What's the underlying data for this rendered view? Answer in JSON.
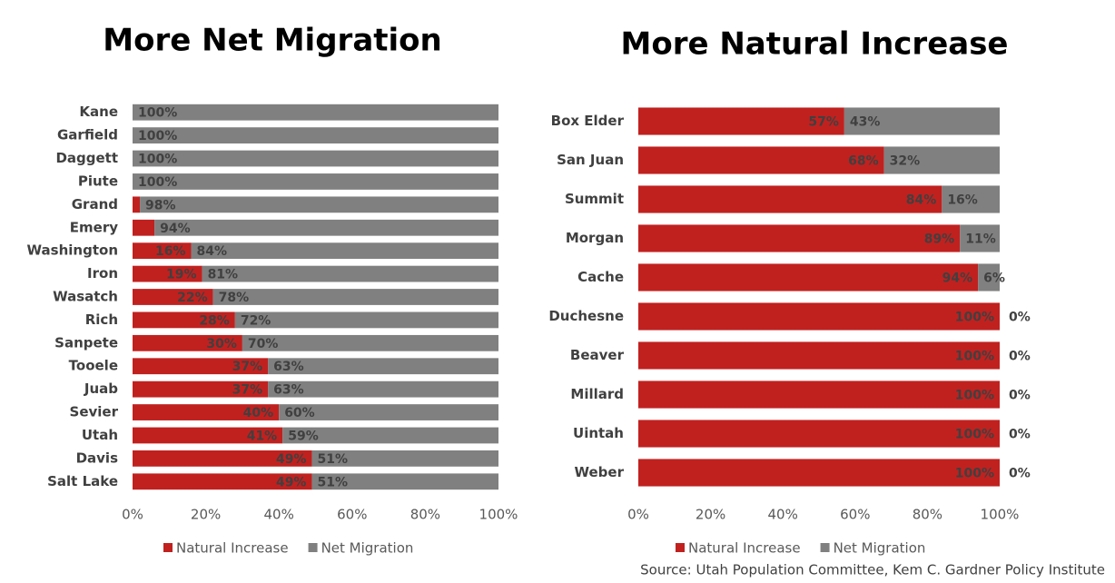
{
  "chart_data": [
    {
      "type": "stacked-bar-horizontal",
      "title": "More Net Migration",
      "categories": [
        "Kane",
        "Garfield",
        "Daggett",
        "Piute",
        "Grand",
        "Emery",
        "Washington",
        "Iron",
        "Wasatch",
        "Rich",
        "Sanpete",
        "Tooele",
        "Juab",
        "Sevier",
        "Utah",
        "Davis",
        "Salt Lake"
      ],
      "series": [
        {
          "name": "Natural Increase",
          "color": "#c0211f",
          "values": [
            0,
            0,
            0,
            0,
            2,
            6,
            16,
            19,
            22,
            28,
            30,
            37,
            37,
            40,
            41,
            49,
            49
          ],
          "value_labels": [
            null,
            null,
            null,
            null,
            null,
            null,
            "16%",
            "19%",
            "22%",
            "28%",
            "30%",
            "37%",
            "37%",
            "40%",
            "41%",
            "49%",
            "49%"
          ]
        },
        {
          "name": "Net Migration",
          "color": "#808080",
          "values": [
            100,
            100,
            100,
            100,
            98,
            94,
            84,
            81,
            78,
            72,
            70,
            63,
            63,
            60,
            59,
            51,
            51
          ],
          "value_labels": [
            "100%",
            "100%",
            "100%",
            "100%",
            "98%",
            "94%",
            "84%",
            "81%",
            "78%",
            "72%",
            "70%",
            "63%",
            "63%",
            "60%",
            "59%",
            "51%",
            "51%"
          ]
        }
      ],
      "xlim": [
        0,
        100
      ],
      "xticks": [
        {
          "value": 0,
          "label": "0%"
        },
        {
          "value": 20,
          "label": "20%"
        },
        {
          "value": 40,
          "label": "40%"
        },
        {
          "value": 60,
          "label": "60%"
        },
        {
          "value": 80,
          "label": "80%"
        },
        {
          "value": 100,
          "label": "100%"
        }
      ],
      "legend": "bottom"
    },
    {
      "type": "stacked-bar-horizontal",
      "title": "More Natural Increase",
      "categories": [
        "Box Elder",
        "San Juan",
        "Summit",
        "Morgan",
        "Cache",
        "Duchesne",
        "Beaver",
        "Millard",
        "Uintah",
        "Weber"
      ],
      "series": [
        {
          "name": "Natural Increase",
          "color": "#c0211f",
          "values": [
            57,
            68,
            84,
            89,
            94,
            100,
            100,
            100,
            100,
            100
          ],
          "value_labels": [
            "57%",
            "68%",
            "84%",
            "89%",
            "94%",
            "100%",
            "100%",
            "100%",
            "100%",
            "100%"
          ]
        },
        {
          "name": "Net Migration",
          "color": "#808080",
          "values": [
            43,
            32,
            16,
            11,
            6,
            0,
            0,
            0,
            0,
            0
          ],
          "value_labels": [
            "43%",
            "32%",
            "16%",
            "11%",
            "6%",
            "0%",
            "0%",
            "0%",
            "0%",
            "0%"
          ]
        }
      ],
      "xlim": [
        0,
        100
      ],
      "xticks": [
        {
          "value": 0,
          "label": "0%"
        },
        {
          "value": 20,
          "label": "20%"
        },
        {
          "value": 40,
          "label": "40%"
        },
        {
          "value": 60,
          "label": "60%"
        },
        {
          "value": 80,
          "label": "80%"
        },
        {
          "value": 100,
          "label": "100%"
        }
      ],
      "legend": "bottom"
    }
  ],
  "source": "Source: Utah Population Committee, Kem C. Gardner Policy Institute"
}
